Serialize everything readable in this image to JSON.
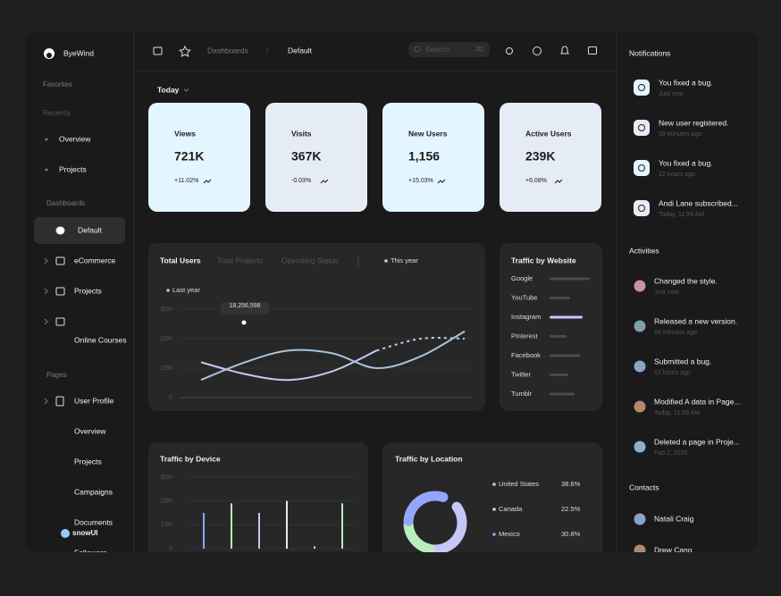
{
  "sidebar": {
    "brand": "ByeWind",
    "favorites": "Favorites",
    "recently": "Recently",
    "recent_items": [
      "Overview",
      "Projects"
    ],
    "dashboards_heading": "Dashboards",
    "dashboards": [
      "Default",
      "eCommerce",
      "Projects",
      "Online Courses"
    ],
    "pages_heading": "Pages",
    "pages": [
      "User Profile",
      "Overview",
      "Projects",
      "Campaigns",
      "Documents",
      "Followers"
    ],
    "footer_logo": "snowUI"
  },
  "topbar": {
    "breadcrumb": [
      "Dashboards",
      "/",
      "Default"
    ],
    "search_placeholder": "Search",
    "search_shortcut": "⌘/"
  },
  "period": "Today",
  "stats": [
    {
      "label": "Views",
      "value": "721K",
      "change": "+11.02%",
      "color": "#e3f5ff"
    },
    {
      "label": "Visits",
      "value": "367K",
      "change": "-0.03%",
      "color": "#e5ecf6"
    },
    {
      "label": "New Users",
      "value": "1,156",
      "change": "+15.03%",
      "color": "#e3f5ff"
    },
    {
      "label": "Active Users",
      "value": "239K",
      "change": "+6.08%",
      "color": "#e5ecf6"
    }
  ],
  "total_users_chart": {
    "type": "line",
    "tabs": [
      "Total Users",
      "Total Projects",
      "Operating Status"
    ],
    "categories": [
      null,
      null,
      null,
      null,
      null,
      null,
      null
    ],
    "series": [
      {
        "name": "This year",
        "color": "#c6c7f8",
        "dashed_from": 4,
        "values": [
          12000000,
          8000000,
          6000000,
          9000000,
          16000000,
          20000000,
          20000000
        ]
      },
      {
        "name": "Last year",
        "color": "#a8c5da",
        "values": [
          6000000,
          12000000,
          16000000,
          15000000,
          10000000,
          14000000,
          22500000
        ]
      }
    ],
    "ylim": [
      0,
      30000000
    ],
    "yticks": [
      0,
      {
        "value": 10000000,
        "label": "10M"
      },
      {
        "value": 20000000,
        "label": "20M"
      },
      {
        "value": 30000000,
        "label": "30M"
      }
    ],
    "grid": true,
    "tooltip": "18,256,598"
  },
  "traffic_by_website": {
    "type": "bar",
    "title": "Traffic by Website",
    "categories": [
      "Google",
      "YouTube",
      "Instagram",
      "Pinterest",
      "Facebook",
      "Twitter",
      "Tumblr"
    ],
    "values": [
      45,
      23,
      37,
      19,
      34,
      21,
      28
    ],
    "colors": [
      "#4a4a4a",
      "#4a4a4a",
      "#c6c7f8",
      "#4a4a4a",
      "#4a4a4a",
      "#4a4a4a",
      "#4a4a4a"
    ],
    "xlim": [
      0,
      50
    ]
  },
  "traffic_by_device": {
    "type": "bar",
    "title": "Traffic by Device",
    "categories": [
      null,
      null,
      null,
      null,
      null,
      null
    ],
    "values": [
      15000000,
      19000000,
      15000000,
      20000000,
      1000000,
      19000000
    ],
    "colors": [
      "#95a4fc",
      "#baedbd",
      "#c6c7f8",
      "#e5ecf6",
      "#c6c7f8",
      "#baedbd"
    ],
    "ylim": [
      0,
      30000000
    ],
    "yticks": [
      0,
      {
        "value": 10000000,
        "label": "10M"
      },
      {
        "value": 20000000,
        "label": "20M"
      },
      {
        "value": 30000000,
        "label": "30M"
      }
    ],
    "grid": true
  },
  "traffic_by_location": {
    "type": "pie",
    "title": "Traffic by Location",
    "categories": [
      "United States",
      "Canada",
      "Mexico"
    ],
    "values": [
      38.6,
      22.5,
      30.8
    ],
    "value_labels": [
      "38.6%",
      "22.5%",
      "30.8%"
    ],
    "colors": [
      "#c6c7f8",
      "#baedbd",
      "#95a4fc"
    ]
  },
  "notifications": {
    "title": "Notifications",
    "items": [
      {
        "text": "You fixed a bug.",
        "time": "Just now"
      },
      {
        "text": "New user registered.",
        "time": "59 minutes ago"
      },
      {
        "text": "You fixed a bug.",
        "time": "12 hours ago"
      },
      {
        "text": "Andi Lane subscribed...",
        "time": "Today, 11:59 AM"
      }
    ]
  },
  "activities": {
    "title": "Activities",
    "items": [
      {
        "text": "Changed the style.",
        "time": "Just now"
      },
      {
        "text": "Released a new version.",
        "time": "59 minutes ago"
      },
      {
        "text": "Submitted a bug.",
        "time": "12 hours ago"
      },
      {
        "text": "Modified A data in Page...",
        "time": "Today, 11:59 AM"
      },
      {
        "text": "Deleted a page in Proje...",
        "time": "Feb 2, 2025"
      }
    ]
  },
  "contacts": {
    "title": "Contacts",
    "items": [
      "Natali Craig",
      "Drew Cano"
    ]
  }
}
